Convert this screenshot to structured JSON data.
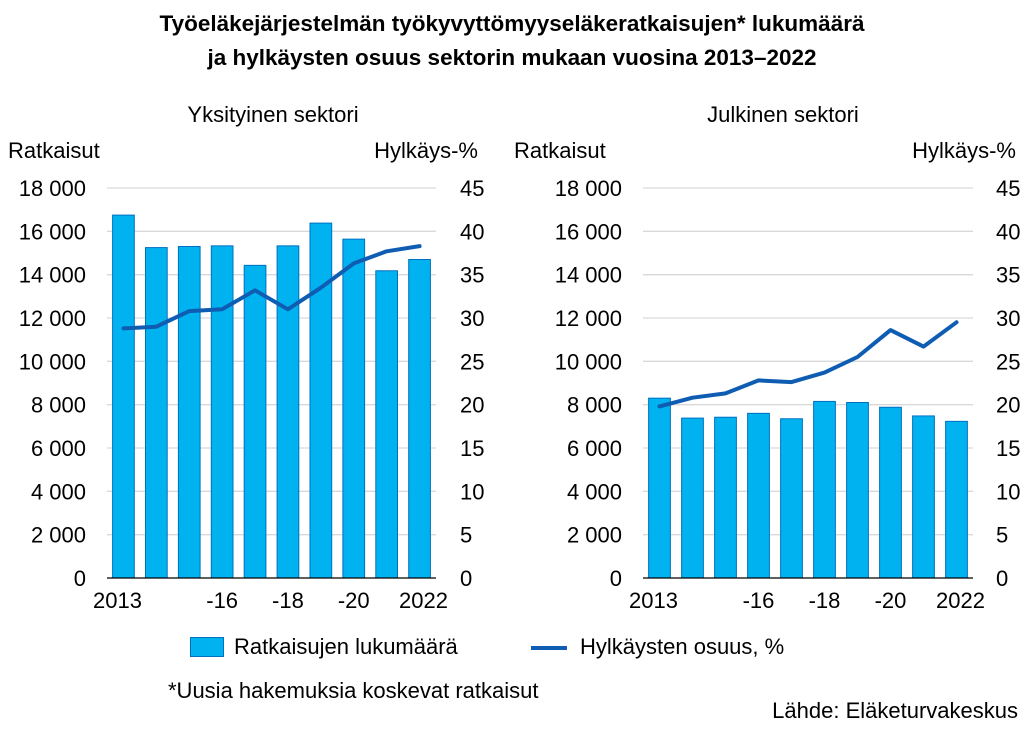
{
  "title_line1": "Työeläkejärjestelmän työkyvyttömyyseläkeratkaisujen* lukumäärä",
  "title_line2": "ja hylkäysten osuus sektorin mukaan vuosina 2013–2022",
  "legend": {
    "bars": "Ratkaisujen lukumäärä",
    "line": "Hylkäysten osuus, %"
  },
  "footnote": "*Uusia hakemuksia koskevat ratkaisut",
  "source": "Lähde: Eläketurvakeskus",
  "colors": {
    "bar_fill": "#00B3F0",
    "bar_edge": "#0070C0",
    "line": "#0F5DB3",
    "grid": "#D9D9D9"
  },
  "chart_data": [
    {
      "type": "bar",
      "panel_title": "Yksityinen sektori",
      "ylabel_left": "Ratkaisut",
      "ylabel_right": "Hylkäys-%",
      "ylim_left": [
        0,
        18000
      ],
      "ylim_right": [
        0,
        45
      ],
      "left_ticks": [
        "0",
        "2 000",
        "4 000",
        "6 000",
        "8 000",
        "10 000",
        "12 000",
        "14 000",
        "16 000",
        "18 000"
      ],
      "right_ticks": [
        "0",
        "5",
        "10",
        "15",
        "20",
        "25",
        "30",
        "35",
        "40",
        "45"
      ],
      "x_tick_labels": [
        "2013",
        "",
        "",
        "-16",
        "",
        "-18",
        "",
        "-20",
        "",
        "2022"
      ],
      "years": [
        2013,
        2014,
        2015,
        2016,
        2017,
        2018,
        2019,
        2020,
        2021,
        2022
      ],
      "series": [
        {
          "name": "Ratkaisujen lukumäärä",
          "kind": "bar",
          "axis": "left",
          "values": [
            16750,
            15250,
            15300,
            15330,
            14430,
            15330,
            16380,
            15640,
            14180,
            14700
          ]
        },
        {
          "name": "Hylkäysten osuus, %",
          "kind": "line",
          "axis": "right",
          "values": [
            28.8,
            29.0,
            30.8,
            31.0,
            33.2,
            31.0,
            33.5,
            36.3,
            37.7,
            38.3
          ]
        }
      ]
    },
    {
      "type": "bar",
      "panel_title": "Julkinen sektori",
      "ylabel_left": "Ratkaisut",
      "ylabel_right": "Hylkäys-%",
      "ylim_left": [
        0,
        18000
      ],
      "ylim_right": [
        0,
        45
      ],
      "left_ticks": [
        "0",
        "2 000",
        "4 000",
        "6 000",
        "8 000",
        "10 000",
        "12 000",
        "14 000",
        "16 000",
        "18 000"
      ],
      "right_ticks": [
        "0",
        "5",
        "10",
        "15",
        "20",
        "25",
        "30",
        "35",
        "40",
        "45"
      ],
      "x_tick_labels": [
        "2013",
        "",
        "",
        "-16",
        "",
        "-18",
        "",
        "-20",
        "",
        "2022"
      ],
      "years": [
        2013,
        2014,
        2015,
        2016,
        2017,
        2018,
        2019,
        2020,
        2021,
        2022
      ],
      "series": [
        {
          "name": "Ratkaisujen lukumäärä",
          "kind": "bar",
          "axis": "left",
          "values": [
            8300,
            7380,
            7420,
            7600,
            7350,
            8150,
            8100,
            7880,
            7480,
            7230
          ]
        },
        {
          "name": "Hylkäysten osuus, %",
          "kind": "line",
          "axis": "right",
          "values": [
            19.8,
            20.8,
            21.3,
            22.8,
            22.6,
            23.7,
            25.5,
            28.6,
            26.7,
            29.5
          ]
        }
      ]
    }
  ]
}
